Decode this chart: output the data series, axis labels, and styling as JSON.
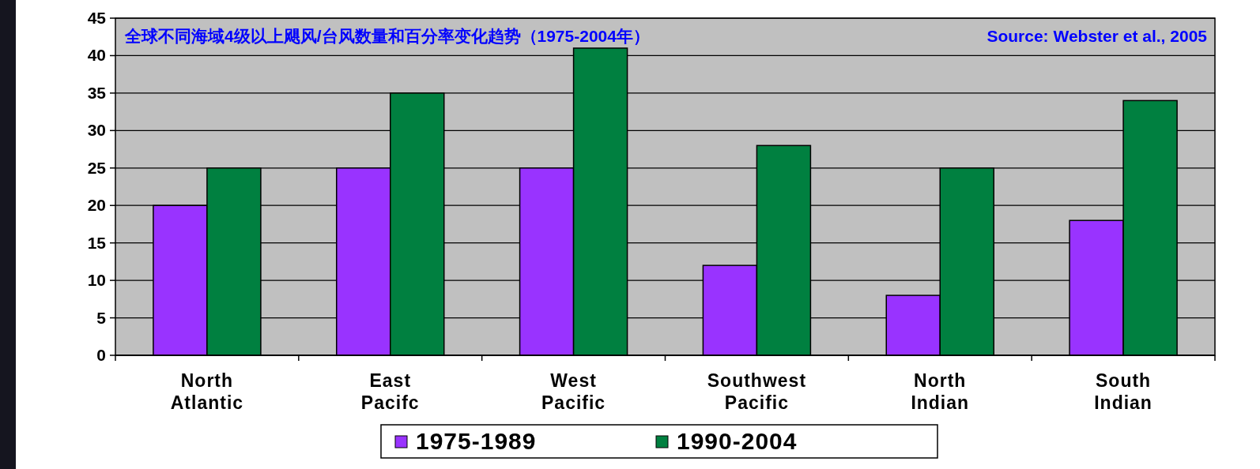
{
  "chart_data": {
    "type": "bar",
    "title": "全球不同海域4级以上飓风/台风数量和百分率变化趋势（1975-2004年）",
    "annotations": [
      "Source: Webster et al., 2005"
    ],
    "categories": [
      "North\nAtlantic",
      "East\nPacifc",
      "West\nPacific",
      "Southwest\nPacific",
      "North\nIndian",
      "South\nIndian"
    ],
    "series": [
      {
        "name": "1975-1989",
        "color": "#9933ff",
        "values": [
          20,
          25,
          25,
          12,
          8,
          18
        ]
      },
      {
        "name": "1990-2004",
        "color": "#008040",
        "values": [
          25,
          35,
          41,
          28,
          25,
          34
        ]
      }
    ],
    "ylim": [
      0,
      45
    ],
    "yticks": [
      0,
      5,
      10,
      15,
      20,
      25,
      30,
      35,
      40,
      45
    ],
    "grid": "y",
    "legend": "bottom"
  }
}
